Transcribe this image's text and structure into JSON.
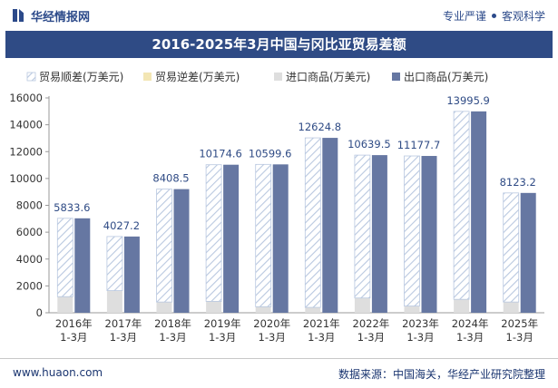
{
  "header": {
    "brand": "华经情报网",
    "tag_left": "专业严谨",
    "tag_right": "客观科学"
  },
  "title": "2016-2025年3月中国与冈比亚贸易差额",
  "footer": {
    "website": "www.huaon.com",
    "source": "数据来源：中国海关，华经产业研究院整理"
  },
  "colors": {
    "trade_balance_hatch": "#b9c8e0",
    "trade_deficit": "#f3e6b4",
    "imports": "#dedede",
    "exports": "#6677a2",
    "title_bar": "#2f4b85",
    "label_blue": "#2f4b85"
  },
  "chart_data": {
    "type": "bar",
    "categories": [
      "2016年\n1-3月",
      "2017年\n1-3月",
      "2018年\n1-3月",
      "2019年\n1-3月",
      "2020年\n1-3月",
      "2021年\n1-3月",
      "2022年\n1-3月",
      "2023年\n1-3月",
      "2024年\n1-3月",
      "2025年\n1-3月"
    ],
    "series": [
      {
        "name": "贸易顺差(万美元)",
        "values": [
          5833.6,
          4027.2,
          8408.5,
          10174.6,
          10599.6,
          12624.8,
          10639.5,
          11177.7,
          13995.9,
          8123.2
        ]
      },
      {
        "name": "贸易逆差(万美元)",
        "values": [
          0,
          0,
          0,
          0,
          0,
          0,
          0,
          0,
          0,
          0
        ]
      },
      {
        "name": "进口商品(万美元)",
        "values": [
          1200,
          1650,
          800,
          850,
          450,
          400,
          1100,
          500,
          1000,
          800
        ]
      },
      {
        "name": "出口商品(万美元)",
        "values": [
          7033.6,
          5677.2,
          9208.5,
          11024.6,
          11049.6,
          13024.8,
          11739.5,
          11677.7,
          14995.9,
          8923.2
        ]
      }
    ],
    "data_labels": [
      "5833.6",
      "4027.2",
      "8408.5",
      "10174.6",
      "10599.6",
      "12624.8",
      "10639.5",
      "11177.7",
      "13995.9",
      "8123.2"
    ],
    "yticks": [
      0,
      2000,
      4000,
      6000,
      8000,
      10000,
      12000,
      14000,
      16000
    ],
    "ylim": [
      0,
      16000
    ],
    "legend_position": "top",
    "grid": false
  }
}
